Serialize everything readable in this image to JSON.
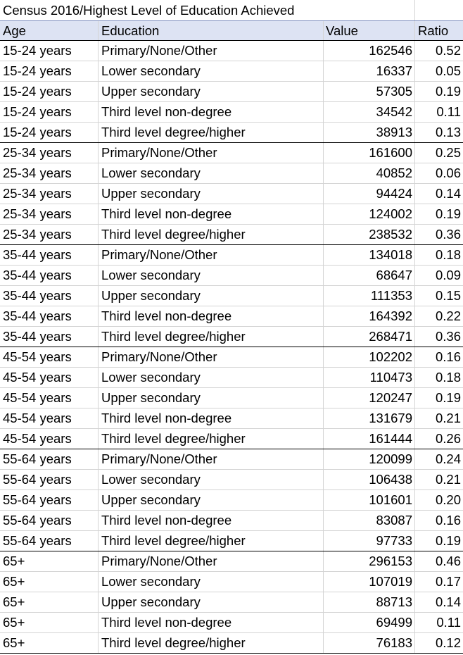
{
  "title": "Census 2016/Highest Level of Education Achieved",
  "headers": {
    "age": "Age",
    "education": "Education",
    "value": "Value",
    "ratio": "Ratio"
  },
  "rows": [
    {
      "age": "15-24 years",
      "education": "Primary/None/Other",
      "value": "162546",
      "ratio": "0.52"
    },
    {
      "age": "15-24 years",
      "education": "Lower secondary",
      "value": "16337",
      "ratio": "0.05"
    },
    {
      "age": "15-24 years",
      "education": "Upper secondary",
      "value": "57305",
      "ratio": "0.19"
    },
    {
      "age": "15-24 years",
      "education": "Third level non-degree",
      "value": "34542",
      "ratio": "0.11"
    },
    {
      "age": "15-24 years",
      "education": "Third level degree/higher",
      "value": "38913",
      "ratio": "0.13"
    },
    {
      "age": "25-34 years",
      "education": "Primary/None/Other",
      "value": "161600",
      "ratio": "0.25"
    },
    {
      "age": "25-34 years",
      "education": "Lower secondary",
      "value": "40852",
      "ratio": "0.06"
    },
    {
      "age": "25-34 years",
      "education": "Upper secondary",
      "value": "94424",
      "ratio": "0.14"
    },
    {
      "age": "25-34 years",
      "education": "Third level non-degree",
      "value": "124002",
      "ratio": "0.19"
    },
    {
      "age": "25-34 years",
      "education": "Third level degree/higher",
      "value": "238532",
      "ratio": "0.36"
    },
    {
      "age": "35-44 years",
      "education": "Primary/None/Other",
      "value": "134018",
      "ratio": "0.18"
    },
    {
      "age": "35-44 years",
      "education": "Lower secondary",
      "value": "68647",
      "ratio": "0.09"
    },
    {
      "age": "35-44 years",
      "education": "Upper secondary",
      "value": "111353",
      "ratio": "0.15"
    },
    {
      "age": "35-44 years",
      "education": "Third level non-degree",
      "value": "164392",
      "ratio": "0.22"
    },
    {
      "age": "35-44 years",
      "education": "Third level degree/higher",
      "value": "268471",
      "ratio": "0.36"
    },
    {
      "age": "45-54 years",
      "education": "Primary/None/Other",
      "value": "102202",
      "ratio": "0.16"
    },
    {
      "age": "45-54 years",
      "education": "Lower secondary",
      "value": "110473",
      "ratio": "0.18"
    },
    {
      "age": "45-54 years",
      "education": "Upper secondary",
      "value": "120247",
      "ratio": "0.19"
    },
    {
      "age": "45-54 years",
      "education": "Third level non-degree",
      "value": "131679",
      "ratio": "0.21"
    },
    {
      "age": "45-54 years",
      "education": "Third level degree/higher",
      "value": "161444",
      "ratio": "0.26"
    },
    {
      "age": "55-64 years",
      "education": "Primary/None/Other",
      "value": "120099",
      "ratio": "0.24"
    },
    {
      "age": "55-64 years",
      "education": "Lower secondary",
      "value": "106438",
      "ratio": "0.21"
    },
    {
      "age": "55-64 years",
      "education": "Upper secondary",
      "value": "101601",
      "ratio": "0.20"
    },
    {
      "age": "55-64 years",
      "education": "Third level non-degree",
      "value": "83087",
      "ratio": "0.16"
    },
    {
      "age": "55-64 years",
      "education": "Third level degree/higher",
      "value": "97733",
      "ratio": "0.19"
    },
    {
      "age": "65+",
      "education": "Primary/None/Other",
      "value": "296153",
      "ratio": "0.46"
    },
    {
      "age": "65+",
      "education": "Lower secondary",
      "value": "107019",
      "ratio": "0.17"
    },
    {
      "age": "65+",
      "education": "Upper secondary",
      "value": "88713",
      "ratio": "0.14"
    },
    {
      "age": "65+",
      "education": "Third level non-degree",
      "value": "69499",
      "ratio": "0.11"
    },
    {
      "age": "65+",
      "education": "Third level degree/higher",
      "value": "76183",
      "ratio": "0.12"
    }
  ],
  "colors": {
    "header_background": "#dde3f3",
    "gridline": "#d4d4d4",
    "group_separator": "#000000"
  }
}
